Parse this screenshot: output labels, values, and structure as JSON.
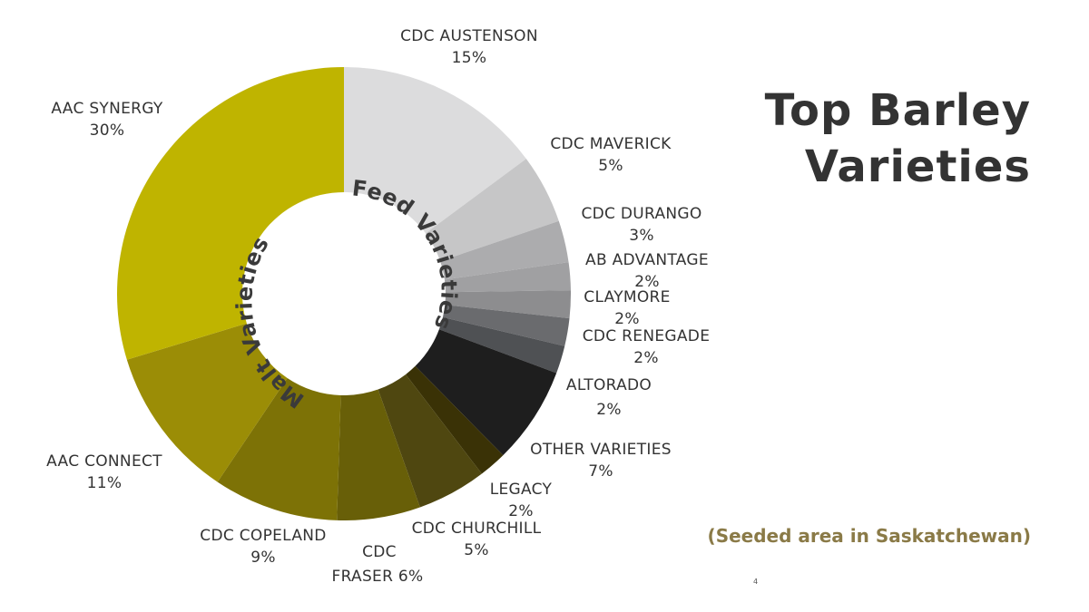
{
  "title": {
    "line1": "Top Barley",
    "line2": "Varieties"
  },
  "subtitle": "(Seeded area in Saskatchewan)",
  "subtitle_color": "#8a7a47",
  "page_number": "4",
  "chart_data": {
    "type": "pie",
    "variant": "donut",
    "title": "Top Barley Varieties",
    "subtitle": "(Seeded area in Saskatchewan)",
    "unit": "%",
    "ring_labels": {
      "feed": "Feed Varieties",
      "malt": "Malt Varieties"
    },
    "slices": [
      {
        "name": "CDC AUSTENSON",
        "value": 15,
        "value_label": "15%",
        "group": "feed",
        "color": "#dcdcdd"
      },
      {
        "name": "CDC MAVERICK",
        "value": 5,
        "value_label": "5%",
        "group": "feed",
        "color": "#c6c6c7"
      },
      {
        "name": "CDC DURANGO",
        "value": 3,
        "value_label": "3%",
        "group": "feed",
        "color": "#acacae"
      },
      {
        "name": "AB ADVANTAGE",
        "value": 2,
        "value_label": "2%",
        "group": "feed",
        "color": "#a0a0a2"
      },
      {
        "name": "CLAYMORE",
        "value": 2,
        "value_label": "2%",
        "group": "feed",
        "color": "#8d8d8f"
      },
      {
        "name": "CDC RENEGADE",
        "value": 2,
        "value_label": "2%",
        "group": "feed",
        "color": "#6a6b6e"
      },
      {
        "name": "ALTORADO",
        "value": 2,
        "value_label": "2%",
        "group": "feed",
        "color": "#4f5154"
      },
      {
        "name": "OTHER VARIETIES",
        "value": 7,
        "value_label": "7%",
        "group": "other",
        "color": "#1e1e1e"
      },
      {
        "name": "LEGACY",
        "value": 2,
        "value_label": "2%",
        "group": "malt",
        "color": "#3a3206"
      },
      {
        "name": "CDC CHURCHILL",
        "value": 5,
        "value_label": "5%",
        "group": "malt",
        "color": "#4f4710"
      },
      {
        "name": "CDC FRASER",
        "value": 6,
        "value_label": "6%",
        "group": "malt",
        "color": "#685f08"
      },
      {
        "name": "CDC COPELAND",
        "value": 9,
        "value_label": "9%",
        "group": "malt",
        "color": "#7d7206"
      },
      {
        "name": "AAC CONNECT",
        "value": 11,
        "value_label": "11%",
        "group": "malt",
        "color": "#9b8d06"
      },
      {
        "name": "AAC SYNERGY",
        "value": 30,
        "value_label": "30%",
        "group": "malt",
        "color": "#bfb400"
      }
    ],
    "start": "12 o'clock",
    "direction": "clockwise",
    "legend": "none (direct labels)"
  }
}
